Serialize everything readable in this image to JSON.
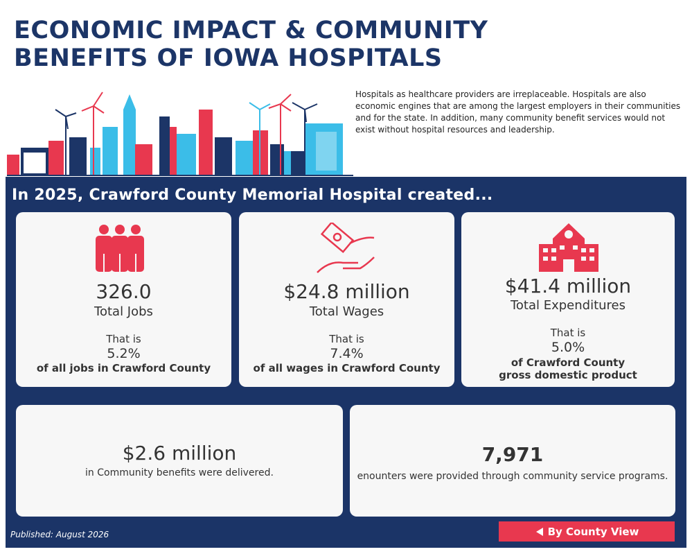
{
  "header": {
    "title": [
      "ECONOMIC IMPACT & COMMUNITY",
      "BENEFITS OF IOWA HOSPITALS"
    ],
    "intro": "Hospitals as healthcare providers are irreplaceable. Hospitals are also economic engines that are among the largest employers in their communities and for the state. In addition, many community benefit services would not exist without hospital resources and leadership."
  },
  "section": {
    "heading": "In 2025, Crawford County Memorial Hospital created..."
  },
  "cards": [
    {
      "value": "326.0",
      "label": "Total Jobs",
      "lead": "That is",
      "share": "5.2%",
      "context": [
        "of all jobs in Crawford County"
      ]
    },
    {
      "value": "$24.8 million",
      "label": "Total Wages",
      "lead": "That is",
      "share": "7.4%",
      "context": [
        "of all wages in Crawford County"
      ]
    },
    {
      "value": "$41.4 million",
      "label": "Total Expenditures",
      "lead": "That is",
      "share": "5.0%",
      "context": [
        "of Crawford County",
        "gross domestic product"
      ]
    }
  ],
  "summary": [
    {
      "value": "$2.6 million",
      "text": "in Community benefits were delivered."
    },
    {
      "value": "7,971",
      "text": "enounters were provided through community service programs."
    }
  ],
  "footer": {
    "published": "Published: August 2026",
    "button": "By County View"
  }
}
